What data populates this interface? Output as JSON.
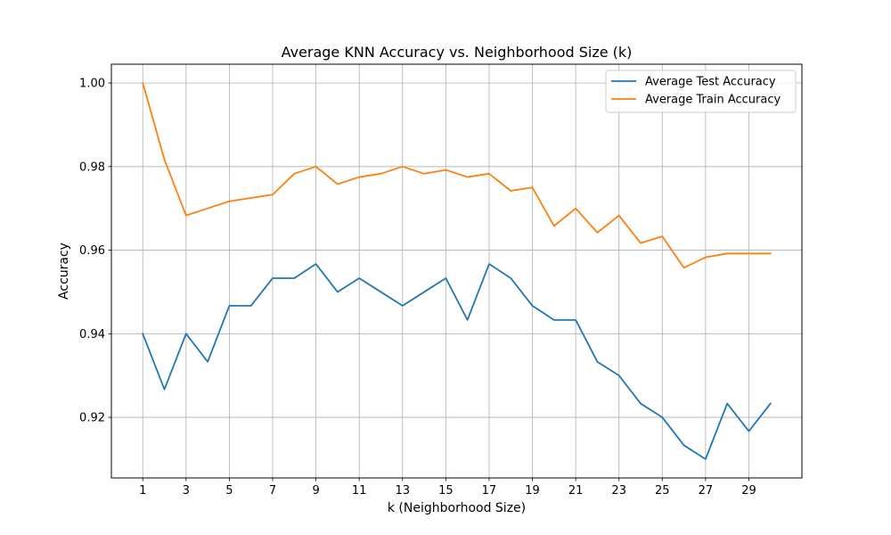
{
  "chart_data": {
    "type": "line",
    "title": "Average KNN Accuracy vs. Neighborhood Size (k)",
    "xlabel": "k (Neighborhood Size)",
    "ylabel": "Accuracy",
    "x": [
      1,
      2,
      3,
      4,
      5,
      6,
      7,
      8,
      9,
      10,
      11,
      12,
      13,
      14,
      15,
      16,
      17,
      18,
      19,
      20,
      21,
      22,
      23,
      24,
      25,
      26,
      27,
      28,
      29,
      30
    ],
    "xticks": [
      1,
      3,
      5,
      7,
      9,
      11,
      13,
      15,
      17,
      19,
      21,
      23,
      25,
      27,
      29
    ],
    "yticks": [
      0.92,
      0.94,
      0.96,
      0.98,
      1.0
    ],
    "ytick_labels": [
      "0.92",
      "0.94",
      "0.96",
      "0.98",
      "1.00"
    ],
    "xlim": [
      -0.45,
      31.45
    ],
    "ylim": [
      0.9055,
      1.0045
    ],
    "grid": true,
    "legend_position": "top-right",
    "series": [
      {
        "name": "Average Test Accuracy",
        "color": "#1f77b4",
        "values": [
          0.94,
          0.9267,
          0.94,
          0.9333,
          0.9467,
          0.9467,
          0.9533,
          0.9533,
          0.9567,
          0.95,
          0.9533,
          0.95,
          0.9467,
          0.95,
          0.9533,
          0.9433,
          0.9567,
          0.9533,
          0.9467,
          0.9433,
          0.9433,
          0.9333,
          0.93,
          0.9233,
          0.92,
          0.9133,
          0.91,
          0.9233,
          0.9167,
          0.9233
        ]
      },
      {
        "name": "Average Train Accuracy",
        "color": "#ff7f0e",
        "values": [
          1.0,
          0.9817,
          0.9683,
          0.97,
          0.9717,
          0.9725,
          0.9733,
          0.9783,
          0.98,
          0.9758,
          0.9775,
          0.9783,
          0.98,
          0.9783,
          0.9792,
          0.9775,
          0.9783,
          0.9742,
          0.975,
          0.9658,
          0.97,
          0.9642,
          0.9683,
          0.9617,
          0.9633,
          0.9558,
          0.9583,
          0.9592,
          0.9592,
          0.9592
        ]
      }
    ]
  }
}
